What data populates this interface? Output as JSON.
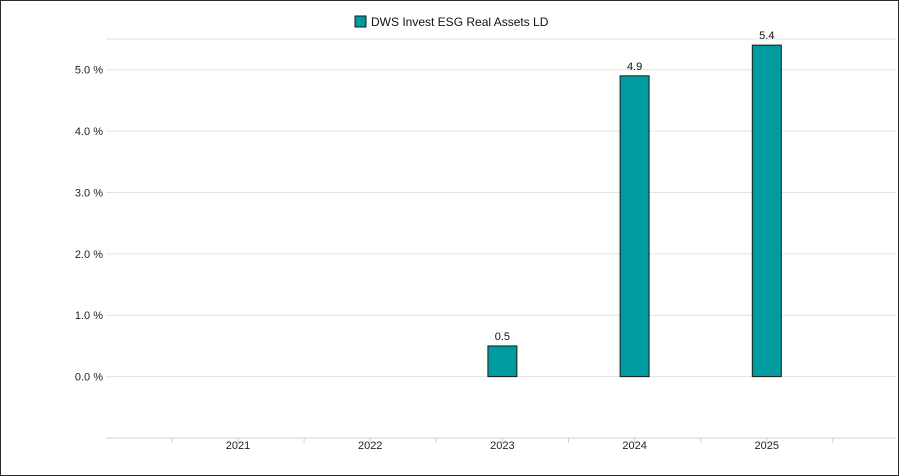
{
  "chart_data": {
    "type": "bar",
    "categories": [
      "2021",
      "2022",
      "2023",
      "2024",
      "2025"
    ],
    "series": [
      {
        "name": "DWS Invest ESG Real Assets LD",
        "values": [
          null,
          null,
          0.5,
          4.9,
          5.4
        ],
        "color": "#009b9e"
      }
    ],
    "data_labels": [
      "",
      "",
      "0.5",
      "4.9",
      "5.4"
    ],
    "y_ticks": [
      0,
      1,
      2,
      3,
      4,
      5
    ],
    "y_tick_labels": [
      "0.0 %",
      "1.0 %",
      "2.0 %",
      "3.0 %",
      "4.0 %",
      "5.0 %"
    ],
    "ylim": [
      -1.0,
      5.5
    ],
    "grid": true,
    "legend_position": "top-center"
  }
}
